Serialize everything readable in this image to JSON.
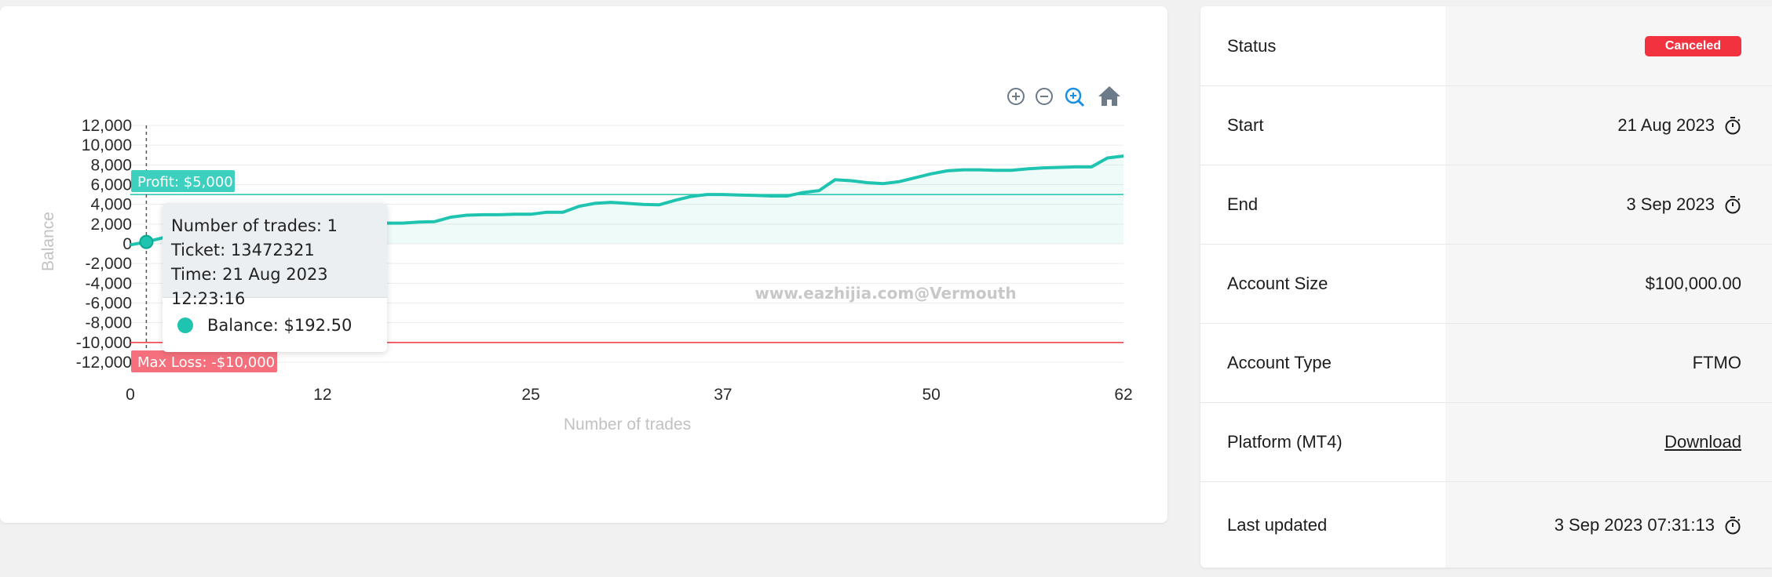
{
  "chart": {
    "toolbar": [
      "zoom-in-icon",
      "zoom-out-icon",
      "selection-zoom-icon",
      "home-icon"
    ],
    "watermark": "www.eazhijia.com@Vermouth",
    "annotations": {
      "profit": {
        "label": "Profit: $5,000",
        "value": 5000
      },
      "max_loss": {
        "label": "Max Loss: -$10,000",
        "value": -10000
      }
    },
    "tooltip": {
      "trades": "Number of trades: 1",
      "ticket": "Ticket: 13472321",
      "time": "Time: 21 Aug 2023 12:23:16",
      "balance": "Balance: $192.50"
    },
    "colors": {
      "series": "#1fc4b0",
      "profit_line": "#1fc4b0",
      "loss_line": "#f2323f",
      "profit_label_bg": "#3ed0bf",
      "loss_label_bg": "#f5707c"
    }
  },
  "chart_data": {
    "type": "area",
    "xlabel": "Number of trades",
    "ylabel": "Balance",
    "xlim": [
      0,
      62
    ],
    "ylim": [
      -12000,
      12000
    ],
    "x_ticks": [
      "0",
      "12",
      "25",
      "37",
      "50",
      "62"
    ],
    "y_ticks": [
      "12,000",
      "10,000",
      "8,000",
      "6,000",
      "4,000",
      "2,000",
      "0",
      "-2,000",
      "-4,000",
      "-6,000",
      "-8,000",
      "-10,000",
      "-12,000"
    ],
    "grid": true,
    "series": [
      {
        "x": [
          0,
          1,
          2,
          3,
          4,
          5,
          6,
          7,
          8,
          9,
          10,
          11,
          12,
          13,
          14,
          15,
          16,
          17,
          18,
          19,
          20,
          21,
          22,
          23,
          24,
          25,
          26,
          27,
          28,
          29,
          30,
          31,
          32,
          33,
          34,
          35,
          36,
          37,
          38,
          39,
          40,
          41,
          42,
          43,
          44,
          45,
          46,
          47,
          48,
          49,
          50,
          51,
          52,
          53,
          54,
          55,
          56,
          57,
          58,
          59,
          60,
          61,
          62
        ],
        "values": [
          -100,
          192.5,
          600,
          1000,
          1300,
          1500,
          1700,
          1800,
          1800,
          1900,
          1900,
          2000,
          2000,
          2050,
          2050,
          2050,
          2100,
          2100,
          2200,
          2250,
          2700,
          2900,
          2950,
          2950,
          3000,
          3000,
          3200,
          3200,
          3800,
          4100,
          4200,
          4100,
          4000,
          3950,
          4400,
          4800,
          5000,
          5000,
          4950,
          4900,
          4850,
          4850,
          5200,
          5400,
          6500,
          6400,
          6200,
          6100,
          6300,
          6700,
          7100,
          7400,
          7500,
          7500,
          7450,
          7450,
          7600,
          7700,
          7750,
          7800,
          7800,
          8700,
          8900
        ]
      }
    ]
  },
  "info": {
    "rows": [
      {
        "label": "Status",
        "value": "Canceled"
      },
      {
        "label": "Start",
        "value": "21 Aug 2023"
      },
      {
        "label": "End",
        "value": "3 Sep 2023"
      },
      {
        "label": "Account Size",
        "value": "$100,000.00"
      },
      {
        "label": "Account Type",
        "value": "FTMO"
      },
      {
        "label": "Platform (MT4)",
        "value": "Download"
      },
      {
        "label": "Last updated",
        "value": "3 Sep 2023 07:31:13"
      }
    ]
  }
}
